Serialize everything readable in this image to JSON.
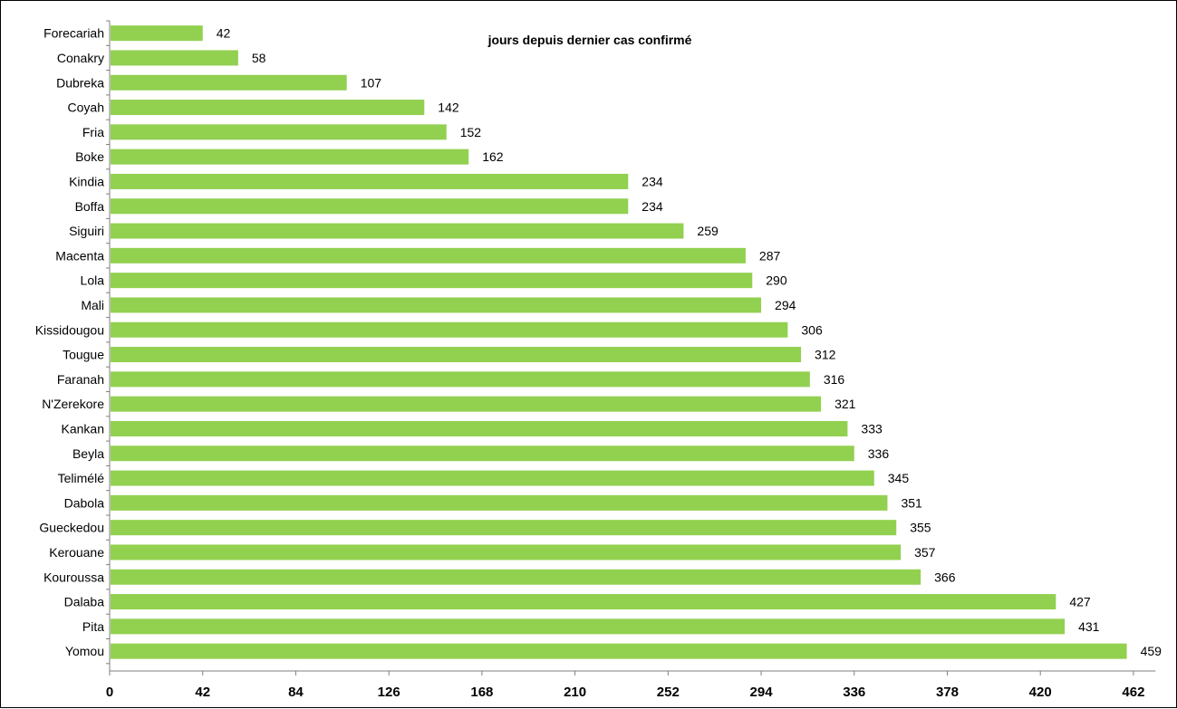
{
  "chart_data": {
    "type": "bar",
    "orientation": "horizontal",
    "title": "jours depuis dernier cas confirmé",
    "xlabel": "",
    "ylabel": "",
    "categories": [
      "Forecariah",
      "Conakry",
      "Dubreka",
      "Coyah",
      "Fria",
      "Boke",
      "Kindia",
      "Boffa",
      "Siguiri",
      "Macenta",
      "Lola",
      "Mali",
      "Kissidougou",
      "Tougue",
      "Faranah",
      "N'Zerekore",
      "Kankan",
      "Beyla",
      "Telimélé",
      "Dabola",
      "Gueckedou",
      "Kerouane",
      "Kouroussa",
      "Dalaba",
      "Pita",
      "Yomou"
    ],
    "values": [
      42,
      58,
      107,
      142,
      152,
      162,
      234,
      234,
      259,
      287,
      290,
      294,
      306,
      312,
      316,
      321,
      333,
      336,
      345,
      351,
      355,
      357,
      366,
      427,
      431,
      459
    ],
    "xlim": [
      0,
      472
    ],
    "xticks": [
      "0",
      "42",
      "84",
      "126",
      "168",
      "210",
      "252",
      "294",
      "336",
      "378",
      "420",
      "462"
    ],
    "grid": false,
    "legend": "none",
    "bar_color": "#92D050",
    "data_labels": true
  }
}
